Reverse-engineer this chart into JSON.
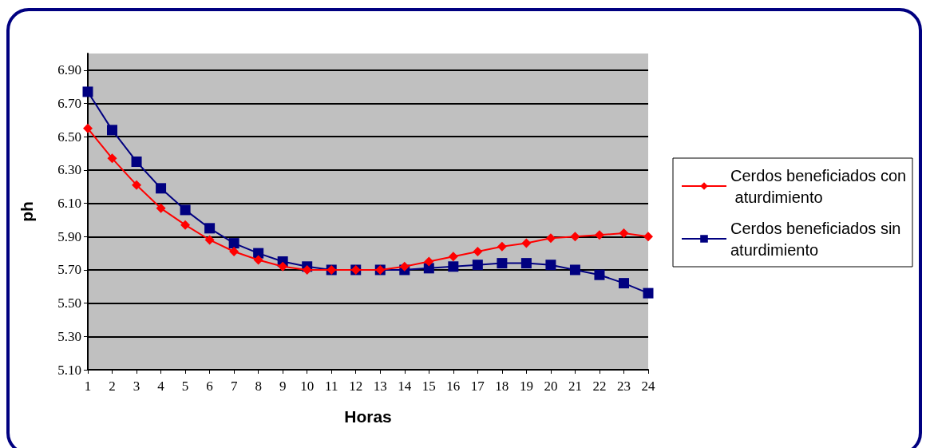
{
  "chart_data": {
    "type": "line",
    "xlabel": "Horas",
    "ylabel": "ph",
    "x": [
      1,
      2,
      3,
      4,
      5,
      6,
      7,
      8,
      9,
      10,
      11,
      12,
      13,
      14,
      15,
      16,
      17,
      18,
      19,
      20,
      21,
      22,
      23,
      24
    ],
    "series": [
      {
        "name": "Cerdos beneficiados con aturdimiento",
        "color": "#ff0000",
        "marker": "diamond",
        "values": [
          6.55,
          6.37,
          6.21,
          6.07,
          5.97,
          5.88,
          5.81,
          5.76,
          5.72,
          5.7,
          5.7,
          5.7,
          5.7,
          5.72,
          5.75,
          5.78,
          5.81,
          5.84,
          5.86,
          5.89,
          5.9,
          5.91,
          5.92,
          5.9
        ]
      },
      {
        "name": "Cerdos beneficiados sin aturdimiento",
        "color": "#000080",
        "marker": "square",
        "values": [
          6.77,
          6.54,
          6.35,
          6.19,
          6.06,
          5.95,
          5.86,
          5.8,
          5.75,
          5.72,
          5.7,
          5.7,
          5.7,
          5.7,
          5.71,
          5.72,
          5.73,
          5.74,
          5.74,
          5.73,
          5.7,
          5.67,
          5.62,
          5.56
        ]
      }
    ],
    "xlim": [
      1,
      24
    ],
    "xticks": [
      1,
      2,
      3,
      4,
      5,
      6,
      7,
      8,
      9,
      10,
      11,
      12,
      13,
      14,
      15,
      16,
      17,
      18,
      19,
      20,
      21,
      22,
      23,
      24
    ],
    "ylim": [
      5.1,
      7.0
    ],
    "yticks": [
      {
        "value": 5.1,
        "label": "5.10"
      },
      {
        "value": 5.3,
        "label": "5.30"
      },
      {
        "value": 5.5,
        "label": "5.50"
      },
      {
        "value": 5.7,
        "label": "5.70"
      },
      {
        "value": 5.9,
        "label": "5.90"
      },
      {
        "value": 6.1,
        "label": "6.10"
      },
      {
        "value": 6.3,
        "label": "6.30"
      },
      {
        "value": 6.5,
        "label": "6.50"
      },
      {
        "value": 6.7,
        "label": "6.70"
      },
      {
        "value": 6.9,
        "label": "6.90"
      }
    ],
    "grid": "y",
    "legend": "right",
    "line_style": "solid"
  }
}
